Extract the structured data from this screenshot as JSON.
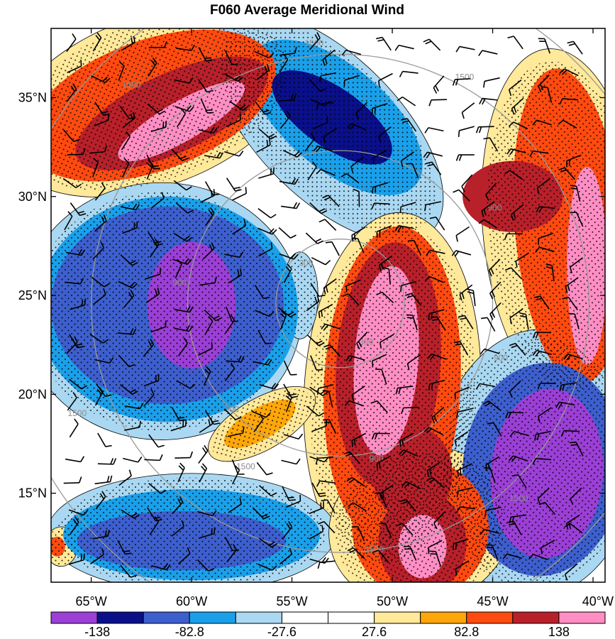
{
  "chart_data": {
    "type": "heatmap",
    "title": "F060 Average Meridional Wind",
    "x_ticks": [
      "65°W",
      "60°W",
      "55°W",
      "50°W",
      "45°W",
      "40°W"
    ],
    "x_tick_values": [
      -65,
      -60,
      -55,
      -50,
      -45,
      -40
    ],
    "y_ticks": [
      "35°N",
      "30°N",
      "25°N",
      "20°N",
      "15°N"
    ],
    "y_tick_values": [
      35,
      30,
      25,
      20,
      15
    ],
    "xlim": [
      -67,
      -39.4
    ],
    "ylim": [
      10.5,
      38.5
    ],
    "colorbar": {
      "labels": [
        "-138",
        "-82.8",
        "-27.6",
        "27.6",
        "82.8",
        "138"
      ],
      "label_values": [
        -138,
        -82.8,
        -27.6,
        27.6,
        82.8,
        138
      ],
      "levels": [
        -193.2,
        -138,
        -110.4,
        -82.8,
        -55.2,
        -27.6,
        0,
        27.6,
        55.2,
        82.8,
        110.4,
        138,
        165.6
      ],
      "colors": [
        "#9b3fd6",
        "#0a0f8a",
        "#3d5fce",
        "#1aa0ea",
        "#aad8f2",
        "#ffffff",
        "#ffffff",
        "#ffe99a",
        "#ffa70a",
        "#ff4a10",
        "#b8202a",
        "#ff8ec4"
      ]
    },
    "range_rings": {
      "values": [
        "300",
        "900",
        "1500"
      ],
      "label_points": [
        {
          "text": "1500",
          "lon": -53.9,
          "lat": 37.6
        },
        {
          "text": "1500",
          "lon": -46.4,
          "lat": 35.9
        },
        {
          "text": "900",
          "lon": -44.9,
          "lat": 29.3
        },
        {
          "text": "300",
          "lon": -54.3,
          "lat": 26.5
        },
        {
          "text": "900",
          "lon": -60.6,
          "lat": 25.5
        },
        {
          "text": "300",
          "lon": -51.3,
          "lat": 22.5
        },
        {
          "text": "900",
          "lon": -44.6,
          "lat": 21.7
        },
        {
          "text": "900",
          "lon": -58.0,
          "lat": 19.1
        },
        {
          "text": "1500",
          "lon": -65.7,
          "lat": 18.9
        },
        {
          "text": "900",
          "lon": -50.8,
          "lat": 16.6
        },
        {
          "text": "1500",
          "lon": -43.7,
          "lat": 14.6
        },
        {
          "text": "1500",
          "lon": -57.3,
          "lat": 16.2
        },
        {
          "text": "1500",
          "lon": -50.9,
          "lat": 12.0
        },
        {
          "text": "1500",
          "lon": -63.0,
          "lat": 35.5
        }
      ],
      "center_lon": -52.6,
      "center_lat": 24.6,
      "radii_deg": [
        3.2,
        7.6,
        12.4,
        16.8
      ]
    },
    "features": [
      {
        "kind": "positive",
        "level": 138,
        "lon": -60.5,
        "lat": 33.8,
        "rx_deg": 3.6,
        "ry_deg": 1.0,
        "rot": -30
      },
      {
        "kind": "positive",
        "level": 110,
        "lon": -61.0,
        "lat": 34.2,
        "rx_deg": 5.2,
        "ry_deg": 2.0,
        "rot": -25
      },
      {
        "kind": "positive",
        "level": 82.8,
        "lon": -62.0,
        "lat": 34.6,
        "rx_deg": 6.5,
        "ry_deg": 3.3,
        "rot": -20
      },
      {
        "kind": "positive",
        "level": 27.6,
        "lon": -62.0,
        "lat": 34.8,
        "rx_deg": 7.6,
        "ry_deg": 4.3,
        "rot": -20
      },
      {
        "kind": "negative",
        "level": -138,
        "lon": -60.0,
        "lat": 24.5,
        "rx_deg": 2.2,
        "ry_deg": 3.2,
        "rot": 0
      },
      {
        "kind": "negative",
        "level": -82.8,
        "lon": -61.2,
        "lat": 24.5,
        "rx_deg": 5.8,
        "ry_deg": 5.0,
        "rot": 0
      },
      {
        "kind": "negative",
        "level": -55.2,
        "lon": -61.2,
        "lat": 24.3,
        "rx_deg": 6.5,
        "ry_deg": 5.7,
        "rot": 0
      },
      {
        "kind": "negative",
        "level": -27.6,
        "lon": -61.5,
        "lat": 24.2,
        "rx_deg": 7.0,
        "ry_deg": 6.5,
        "rot": 0
      },
      {
        "kind": "negative",
        "level": -110,
        "lon": -53.0,
        "lat": 34.0,
        "rx_deg": 3.5,
        "ry_deg": 1.5,
        "rot": 35
      },
      {
        "kind": "negative",
        "level": -55.2,
        "lon": -52.8,
        "lat": 34.0,
        "rx_deg": 5.2,
        "ry_deg": 2.6,
        "rot": 40
      },
      {
        "kind": "negative",
        "level": -27.6,
        "lon": -53.2,
        "lat": 33.5,
        "rx_deg": 7.3,
        "ry_deg": 3.6,
        "rot": 45
      },
      {
        "kind": "positive",
        "level": 138,
        "lon": -50.3,
        "lat": 21.7,
        "rx_deg": 1.6,
        "ry_deg": 4.8,
        "rot": 4
      },
      {
        "kind": "positive",
        "level": 110,
        "lon": -50.2,
        "lat": 21.5,
        "rx_deg": 2.6,
        "ry_deg": 6.2,
        "rot": 4
      },
      {
        "kind": "positive",
        "level": 82.8,
        "lon": -50.0,
        "lat": 20.5,
        "rx_deg": 3.4,
        "ry_deg": 8.0,
        "rot": 3
      },
      {
        "kind": "positive",
        "level": 27.6,
        "lon": -50.0,
        "lat": 20.0,
        "rx_deg": 4.4,
        "ry_deg": 9.2,
        "rot": 3
      },
      {
        "kind": "positive",
        "level": 138,
        "lon": -40.3,
        "lat": 26.5,
        "rx_deg": 1.0,
        "ry_deg": 5.0,
        "rot": 0
      },
      {
        "kind": "positive",
        "level": 82.8,
        "lon": -41.2,
        "lat": 28.5,
        "rx_deg": 2.7,
        "ry_deg": 8.0,
        "rot": -5
      },
      {
        "kind": "positive",
        "level": 27.6,
        "lon": -41.5,
        "lat": 28.5,
        "rx_deg": 4.0,
        "ry_deg": 9.0,
        "rot": -5
      },
      {
        "kind": "positive",
        "level": 110,
        "lon": -44.0,
        "lat": 30.0,
        "rx_deg": 2.5,
        "ry_deg": 1.8,
        "rot": 0
      },
      {
        "kind": "negative",
        "level": -138,
        "lon": -42.3,
        "lat": 16.0,
        "rx_deg": 2.8,
        "ry_deg": 4.3,
        "rot": 5
      },
      {
        "kind": "negative",
        "level": -82.8,
        "lon": -42.5,
        "lat": 16.2,
        "rx_deg": 4.0,
        "ry_deg": 5.4,
        "rot": 5
      },
      {
        "kind": "negative",
        "level": -27.6,
        "lon": -42.8,
        "lat": 16.5,
        "rx_deg": 5.0,
        "ry_deg": 6.8,
        "rot": 5
      },
      {
        "kind": "negative",
        "level": -82.8,
        "lon": -60.5,
        "lat": 12.6,
        "rx_deg": 5.2,
        "ry_deg": 1.5,
        "rot": 0
      },
      {
        "kind": "negative",
        "level": -55.2,
        "lon": -60.0,
        "lat": 12.9,
        "rx_deg": 6.4,
        "ry_deg": 2.3,
        "rot": 0
      },
      {
        "kind": "negative",
        "level": -27.6,
        "lon": -60.0,
        "lat": 13.0,
        "rx_deg": 7.2,
        "ry_deg": 3.0,
        "rot": 0
      },
      {
        "kind": "positive",
        "level": 55.2,
        "lon": -56.6,
        "lat": 18.5,
        "rx_deg": 2.0,
        "ry_deg": 0.8,
        "rot": -30
      },
      {
        "kind": "positive",
        "level": 27.6,
        "lon": -56.5,
        "lat": 18.5,
        "rx_deg": 3.0,
        "ry_deg": 1.3,
        "rot": -30
      },
      {
        "kind": "positive",
        "level": 138,
        "lon": -48.5,
        "lat": 12.3,
        "rx_deg": 1.2,
        "ry_deg": 1.6,
        "rot": 0
      },
      {
        "kind": "positive",
        "level": 110,
        "lon": -48.5,
        "lat": 12.5,
        "rx_deg": 2.2,
        "ry_deg": 2.6,
        "rot": 0
      },
      {
        "kind": "positive",
        "level": 82.8,
        "lon": -48.6,
        "lat": 13.2,
        "rx_deg": 3.4,
        "ry_deg": 3.5,
        "rot": -10
      },
      {
        "kind": "positive",
        "level": 27.6,
        "lon": -48.6,
        "lat": 13.3,
        "rx_deg": 4.6,
        "ry_deg": 4.0,
        "rot": -15
      },
      {
        "kind": "positive",
        "level": 110,
        "lon": -49.0,
        "lat": 16.0,
        "rx_deg": 2.0,
        "ry_deg": 2.4,
        "rot": 0
      },
      {
        "kind": "negative",
        "level": -27.6,
        "lon": -54.6,
        "lat": 25.0,
        "rx_deg": 0.9,
        "ry_deg": 2.2,
        "rot": 0
      },
      {
        "kind": "positive",
        "level": 27.6,
        "lon": -66.5,
        "lat": 12.3,
        "rx_deg": 0.8,
        "ry_deg": 1.0,
        "rot": 0
      },
      {
        "kind": "positive",
        "level": 82.8,
        "lon": -66.7,
        "lat": 12.3,
        "rx_deg": 0.4,
        "ry_deg": 0.5,
        "rot": 0
      }
    ]
  }
}
